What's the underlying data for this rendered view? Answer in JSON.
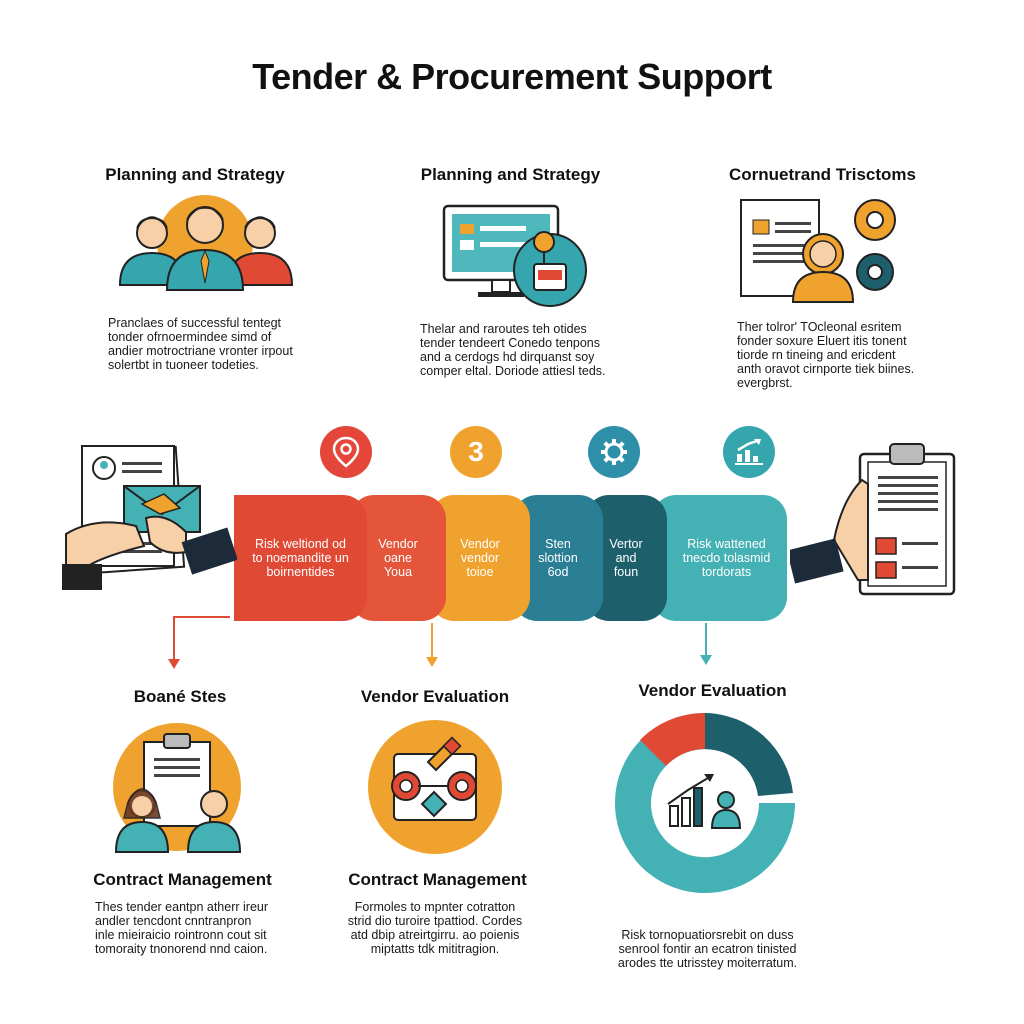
{
  "title": "Tender & Procurement Support",
  "top_cards": [
    {
      "heading": "Planning and Strategy",
      "text": [
        "Pranclaes of successful tentegt",
        "tonder ofrnoermindee simd of",
        "andier motroctriane vronter irpout",
        "solertbt in tuoneer todeties."
      ]
    },
    {
      "heading": "Planning and Strategy",
      "text": [
        "Thelar and raroutes teh otides",
        "tender tendeert Conedo tenpons",
        "and a cerdogs hd dirquanst soy",
        "comper eltal. Doriode attiesl teds."
      ]
    },
    {
      "heading": "Cornuetrand Trisctoms",
      "text": [
        "Ther tolror' TOcleonal esritem",
        "fonder soxure Eluert itis tonent",
        "tiorde rn tineing and ericdent",
        "anth oravot cirnporte tiek biines.",
        "evergbrst."
      ]
    }
  ],
  "badges": [
    {
      "type": "icon",
      "icon": "location-pin-icon",
      "color": "#e4463a"
    },
    {
      "type": "number",
      "label": "3",
      "color": "#f0a22e"
    },
    {
      "type": "icon",
      "icon": "gear-icon",
      "color": "#2e8fa8"
    },
    {
      "type": "icon",
      "icon": "chart-arrow-icon",
      "color": "#35a6ad"
    }
  ],
  "timeline": [
    {
      "lines": [
        "Risk weltiond od",
        "to noemandite un",
        "boirnentides"
      ],
      "color": "#e04a35"
    },
    {
      "lines": [
        "Vendor",
        "oane",
        "Youa"
      ],
      "color": "#e4553a"
    },
    {
      "lines": [
        "Vendor",
        "vendor",
        "toioe"
      ],
      "color": "#f0a22e"
    },
    {
      "lines": [
        "Sten",
        "slottion",
        "6od"
      ],
      "color": "#2a7f95"
    },
    {
      "lines": [
        "Vertor",
        "and",
        "foun"
      ],
      "color": "#1d5f6b"
    },
    {
      "lines": [
        "Risk wattened",
        "tnecdo tolasmid",
        "tordorats"
      ],
      "color": "#44b1b5"
    }
  ],
  "bottom_cards": [
    {
      "heading": "Boané Stes",
      "subheading": "Contract Management",
      "text": [
        "Thes tender eantpn atherr ireur",
        "andler tencdont cnntranpron",
        "inle mieiraicio rointronn cout sit",
        "tomoraity tnonorend nnd caion."
      ]
    },
    {
      "heading": "Vendor Evaluation",
      "subheading": "Contract Management",
      "text": [
        "Formoles to mpnter cotratton",
        "strid dio turoire tpattiod. Cordes",
        "atd dbip atreirtgirru. ao poienis",
        "miptatts tdk mititragion."
      ]
    },
    {
      "heading": "Vendor Evaluation",
      "text": [
        "Risk tornopuatiorsrebit on duss",
        "senrool fontir an ecatron tinisted",
        "arodes tte utrisstey moiterratum."
      ]
    }
  ],
  "colors": {
    "red": "#e04a35",
    "orange": "#f0a22e",
    "teal": "#44b1b5",
    "dark_teal": "#1d5f6b"
  }
}
